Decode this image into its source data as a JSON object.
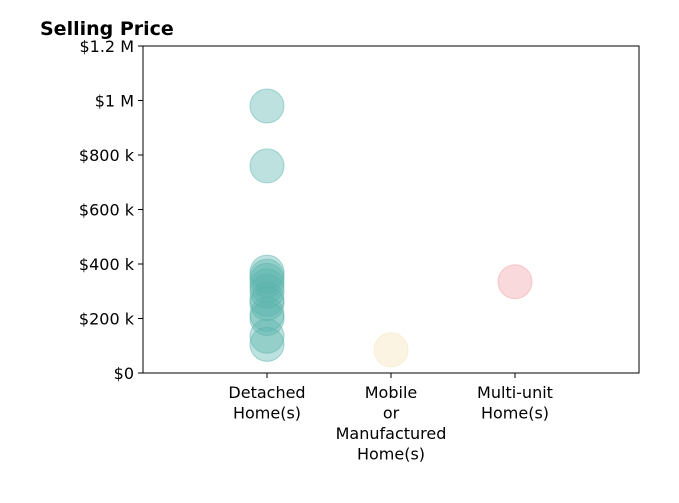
{
  "chart_data": {
    "type": "scatter",
    "title": "Selling Price",
    "xlabel": "",
    "ylabel": "",
    "categories": [
      [
        "Detached",
        "Home(s)"
      ],
      [
        "Mobile",
        "or",
        "Manufactured",
        "Home(s)"
      ],
      [
        "Multi-unit",
        "Home(s)"
      ]
    ],
    "xlim": [
      -1,
      3
    ],
    "ylim": [
      0,
      1200000
    ],
    "y_ticks": [
      0,
      200000,
      400000,
      600000,
      800000,
      1000000,
      1200000
    ],
    "y_tick_labels": [
      "$0",
      "$200 k",
      "$400 k",
      "$600 k",
      "$800 k",
      "$1 M",
      "$1.2 M"
    ],
    "grid": false,
    "series": [
      {
        "category_index": 0,
        "color": "#5ab4ac",
        "values": [
          980000,
          760000,
          370000,
          355000,
          340000,
          320000,
          300000,
          270000,
          255000,
          215000,
          200000,
          135000,
          105000
        ]
      },
      {
        "category_index": 1,
        "color": "#f6e3b8",
        "values": [
          85000
        ]
      },
      {
        "category_index": 2,
        "color": "#f0a0a8",
        "values": [
          335000
        ]
      }
    ]
  }
}
